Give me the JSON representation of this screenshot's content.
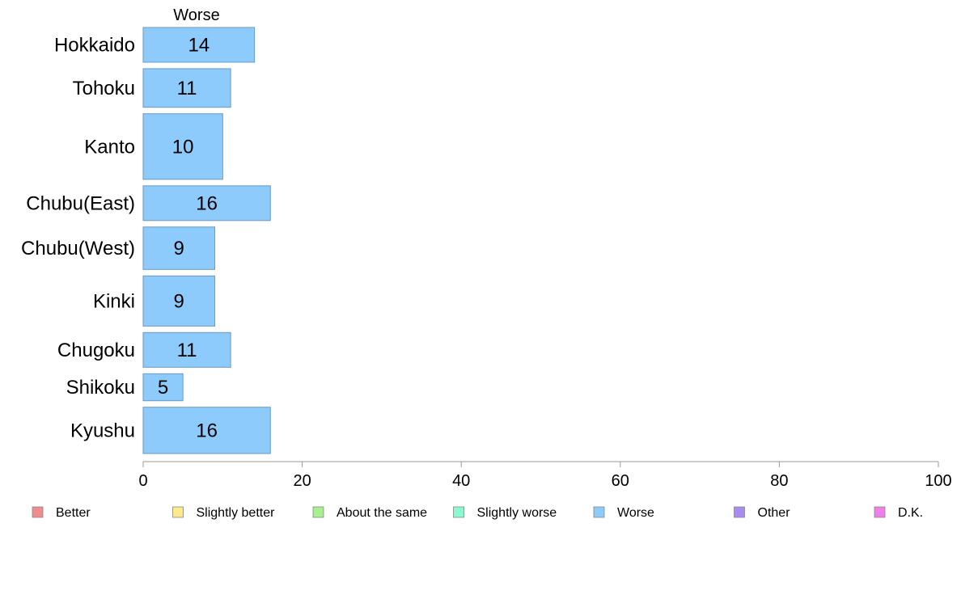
{
  "chart_data": {
    "type": "bar",
    "orientation": "horizontal",
    "title": "",
    "series_header": "Worse",
    "categories": [
      "Hokkaido",
      "Tohoku",
      "Kanto",
      "Chubu(East)",
      "Chubu(West)",
      "Kinki",
      "Chugoku",
      "Shikoku",
      "Kyushu"
    ],
    "series": [
      {
        "name": "Worse",
        "values": [
          14,
          11,
          10,
          16,
          9,
          9,
          11,
          5,
          16
        ],
        "color": "#8ecbfd"
      }
    ],
    "category_weights": [
      0.9,
      1.0,
      1.7,
      0.9,
      1.1,
      1.3,
      0.9,
      0.7,
      1.2
    ],
    "xlim": [
      0,
      100
    ],
    "x_ticks": [
      0,
      20,
      40,
      60,
      80,
      100
    ],
    "xlabel": "",
    "ylabel": "",
    "grid": false,
    "legend_position": "bottom",
    "legend": [
      {
        "label": "Better",
        "color": "#f08c8c"
      },
      {
        "label": "Slightly better",
        "color": "#fbe98c"
      },
      {
        "label": "About the same",
        "color": "#a8f08c"
      },
      {
        "label": "Slightly worse",
        "color": "#8cf8d0"
      },
      {
        "label": "Worse",
        "color": "#8ecbfd"
      },
      {
        "label": "Other",
        "color": "#a98cf0"
      },
      {
        "label": "D.K.",
        "color": "#f080e8"
      }
    ]
  }
}
